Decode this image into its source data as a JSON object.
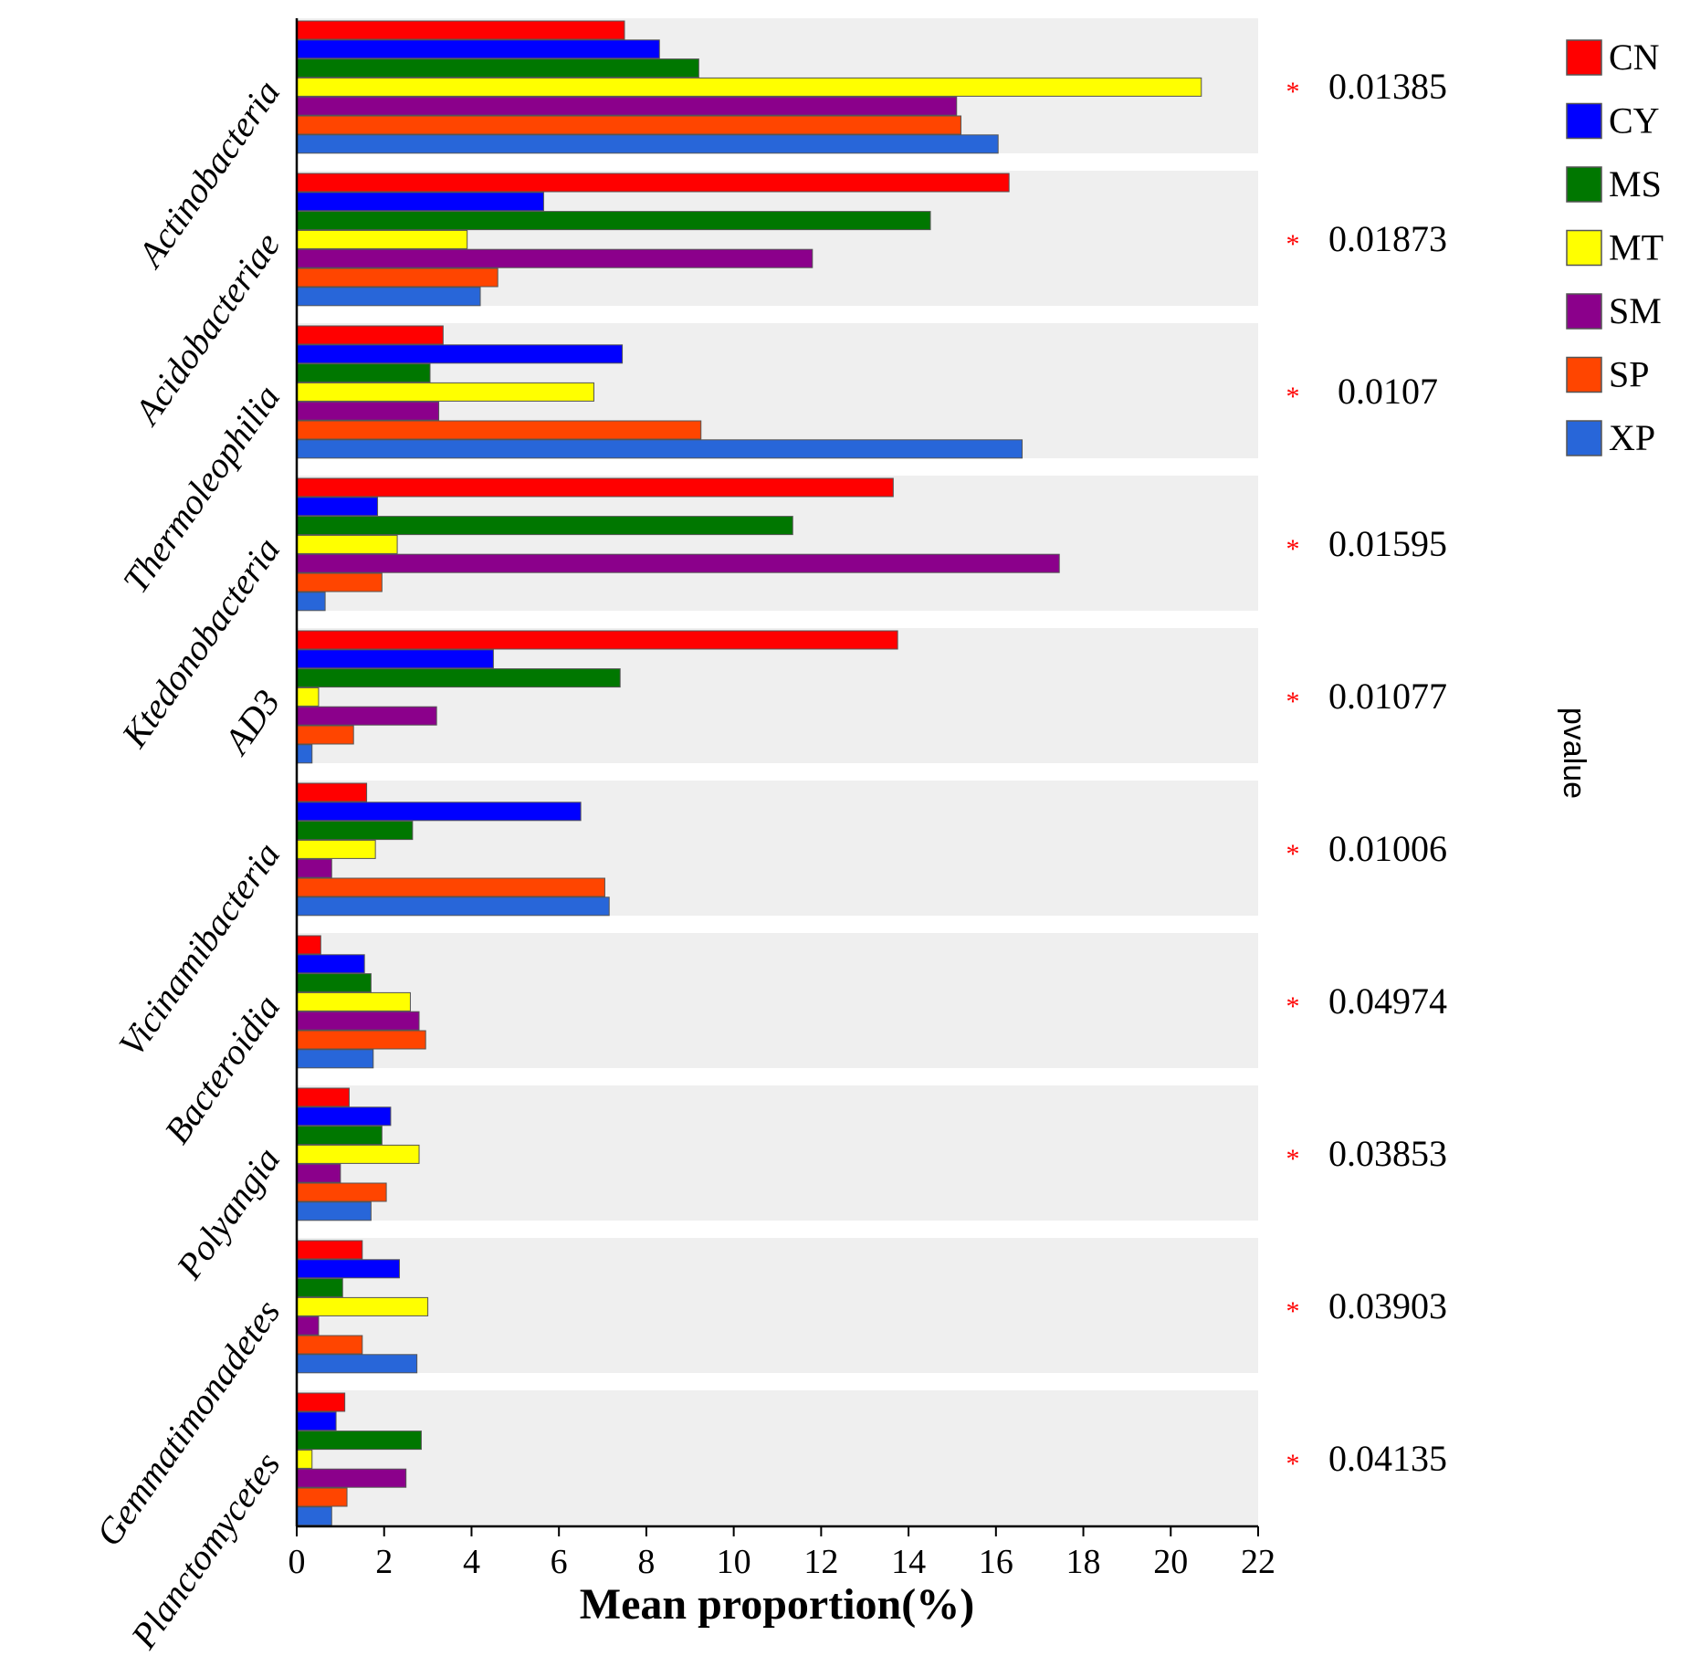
{
  "chart_data": {
    "type": "bar",
    "orientation": "horizontal",
    "xlabel": "Mean proportion(%)",
    "xlim": [
      0,
      22
    ],
    "xticks": [
      0,
      2,
      4,
      6,
      8,
      10,
      12,
      14,
      16,
      18,
      20,
      22
    ],
    "pvalue_axis_label": "pvalue",
    "significance_marker": "*",
    "significance_color": "#ff0000",
    "panel_background": "#efefef",
    "categories": [
      "Actinobacteria",
      "Acidobacteriae",
      "Thermoleophilia",
      "Ktedonobacteria",
      "AD3",
      "Vicinamibacteria",
      "Bacteroidia",
      "Polyangia",
      "Gemmatimonadetes",
      "Planctomycetes"
    ],
    "pvalues": [
      "0.01385",
      "0.01873",
      "0.0107",
      "0.01595",
      "0.01077",
      "0.01006",
      "0.04974",
      "0.03853",
      "0.03903",
      "0.04135"
    ],
    "series": [
      {
        "name": "CN",
        "color": "#ff0000",
        "values": [
          7.5,
          16.3,
          3.35,
          13.65,
          13.75,
          1.6,
          0.55,
          1.2,
          1.5,
          1.1
        ]
      },
      {
        "name": "CY",
        "color": "#0000ff",
        "values": [
          8.3,
          5.65,
          7.45,
          1.85,
          4.5,
          6.5,
          1.55,
          2.15,
          2.35,
          0.9
        ]
      },
      {
        "name": "MS",
        "color": "#007700",
        "values": [
          9.2,
          14.5,
          3.05,
          11.35,
          7.4,
          2.65,
          1.7,
          1.95,
          1.05,
          2.85
        ]
      },
      {
        "name": "MT",
        "color": "#ffff00",
        "values": [
          20.7,
          3.9,
          6.8,
          2.3,
          0.5,
          1.8,
          2.6,
          2.8,
          3.0,
          0.35
        ]
      },
      {
        "name": "SM",
        "color": "#8b008b",
        "values": [
          15.1,
          11.8,
          3.25,
          17.45,
          3.2,
          0.8,
          2.8,
          1.0,
          0.5,
          2.5
        ]
      },
      {
        "name": "SP",
        "color": "#ff4500",
        "values": [
          15.2,
          4.6,
          9.25,
          1.95,
          1.3,
          7.05,
          2.95,
          2.05,
          1.5,
          1.15
        ]
      },
      {
        "name": "XP",
        "color": "#2866d9",
        "values": [
          16.05,
          4.2,
          16.6,
          0.65,
          0.35,
          7.15,
          1.75,
          1.7,
          2.75,
          0.8
        ]
      }
    ]
  }
}
